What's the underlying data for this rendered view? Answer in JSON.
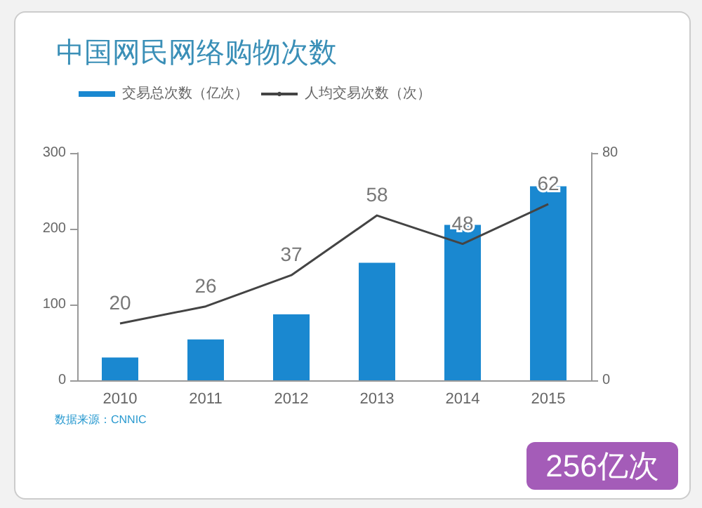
{
  "chart_data": {
    "type": "bar",
    "title": "中国网民网络购物次数",
    "categories": [
      "2010",
      "2011",
      "2012",
      "2013",
      "2014",
      "2015"
    ],
    "series": [
      {
        "name": "交易总次数（亿次）",
        "color": "#1a88d0",
        "values": [
          30,
          54,
          87,
          155,
          205,
          256
        ]
      },
      {
        "name": "人均交易次数（次）",
        "type": "line",
        "axis": "y2",
        "color": "#444444",
        "values": [
          20,
          26,
          37,
          58,
          48,
          62
        ],
        "data_labels": true
      }
    ],
    "ylim": [
      0,
      300
    ],
    "yticks": [
      0,
      100,
      200,
      300
    ],
    "y2lim": [
      0,
      80
    ],
    "y2ticks": [
      0,
      80
    ],
    "grid": false,
    "legend": "top left",
    "marker": "none",
    "annotations": [
      "数据来源：CNNIC",
      "256亿次"
    ]
  }
}
